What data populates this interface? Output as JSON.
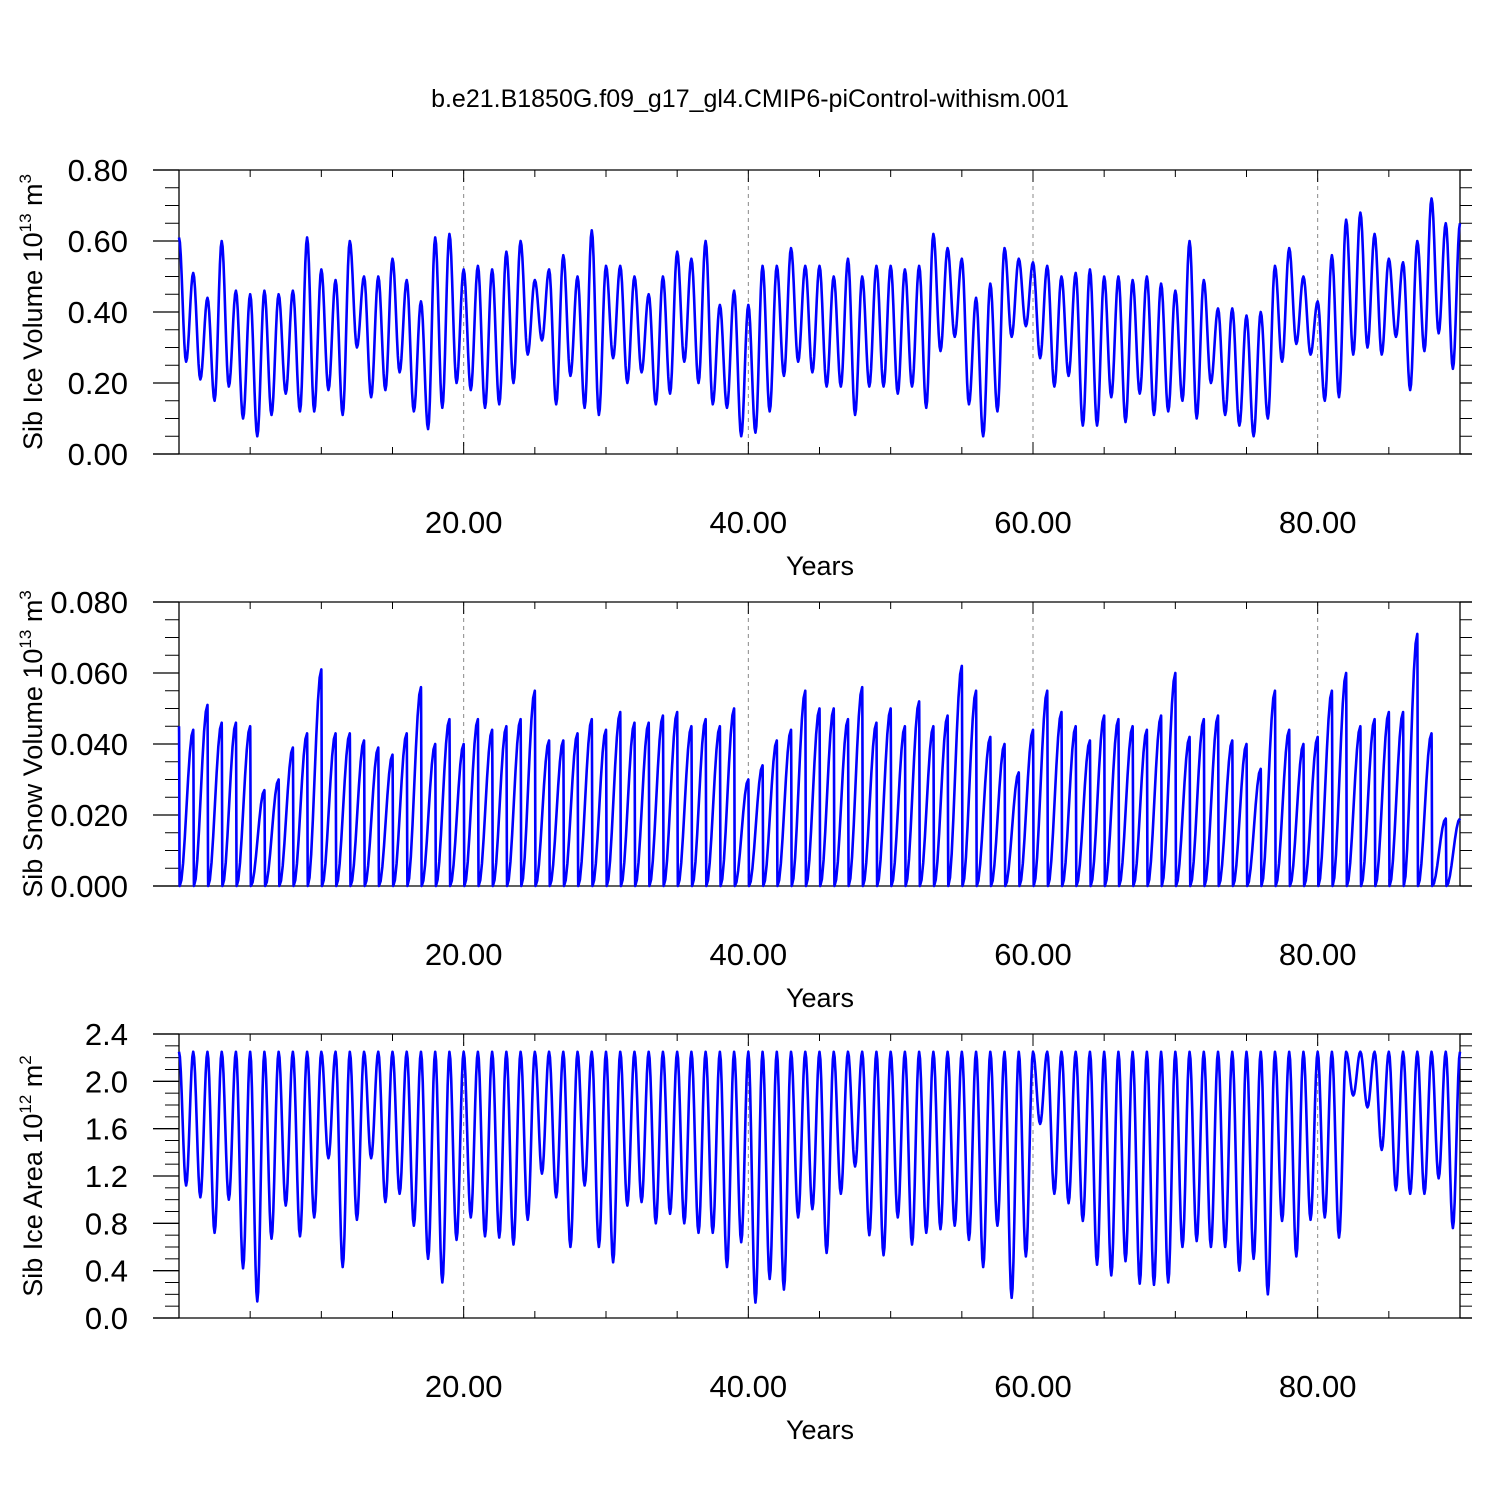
{
  "title": "b.e21.B1850G.f09_g17_gl4.CMIP6-piControl-withism.001",
  "colors": {
    "line": "#0000ff",
    "axis": "#000000",
    "grid": "#888888"
  },
  "chart_data": [
    {
      "type": "line",
      "ylabel_main": "Sib Ice Volume 10",
      "ylabel_exp": "13",
      "ylabel_unit": "m",
      "ylabel_unit_exp": "3",
      "xlabel": "Years",
      "xlim": [
        0,
        90
      ],
      "ylim": [
        0,
        0.8
      ],
      "yticks": [
        0,
        0.2,
        0.4,
        0.6,
        0.8
      ],
      "ytick_labels": [
        "0.00",
        "0.20",
        "0.40",
        "0.60",
        "0.80"
      ],
      "xticks": [
        20,
        40,
        60,
        80
      ],
      "xtick_labels": [
        "20.00",
        "40.00",
        "60.00",
        "80.00"
      ],
      "grid": "dashed vertical lines at major x ticks",
      "series": [
        {
          "maxima": [
            0.61,
            0.51,
            0.44,
            0.6,
            0.46,
            0.45,
            0.46,
            0.45,
            0.46,
            0.61,
            0.52,
            0.49,
            0.6,
            0.5,
            0.5,
            0.55,
            0.49,
            0.43,
            0.61,
            0.62,
            0.52,
            0.53,
            0.52,
            0.57,
            0.6,
            0.49,
            0.52,
            0.56,
            0.5,
            0.63,
            0.53,
            0.53,
            0.5,
            0.45,
            0.5,
            0.57,
            0.55,
            0.6,
            0.42,
            0.46,
            0.42,
            0.53,
            0.53,
            0.58,
            0.53,
            0.53,
            0.5,
            0.55,
            0.5,
            0.53,
            0.53,
            0.52,
            0.53,
            0.62,
            0.58,
            0.55,
            0.44,
            0.48,
            0.58,
            0.55,
            0.54,
            0.53,
            0.5,
            0.51,
            0.52,
            0.5,
            0.5,
            0.49,
            0.5,
            0.48,
            0.46,
            0.6,
            0.49,
            0.41,
            0.41,
            0.39,
            0.4,
            0.53,
            0.58,
            0.5,
            0.43,
            0.56,
            0.66,
            0.68,
            0.62,
            0.55,
            0.54,
            0.6,
            0.72,
            0.65
          ],
          "minima": [
            0.26,
            0.21,
            0.15,
            0.19,
            0.1,
            0.05,
            0.11,
            0.17,
            0.12,
            0.12,
            0.18,
            0.11,
            0.3,
            0.16,
            0.18,
            0.23,
            0.12,
            0.07,
            0.13,
            0.2,
            0.18,
            0.13,
            0.14,
            0.2,
            0.28,
            0.32,
            0.14,
            0.22,
            0.13,
            0.11,
            0.27,
            0.2,
            0.23,
            0.14,
            0.17,
            0.26,
            0.2,
            0.14,
            0.13,
            0.05,
            0.06,
            0.12,
            0.22,
            0.26,
            0.23,
            0.19,
            0.19,
            0.11,
            0.19,
            0.19,
            0.17,
            0.19,
            0.13,
            0.29,
            0.33,
            0.14,
            0.05,
            0.12,
            0.33,
            0.36,
            0.27,
            0.19,
            0.22,
            0.08,
            0.08,
            0.16,
            0.09,
            0.17,
            0.11,
            0.12,
            0.15,
            0.1,
            0.2,
            0.11,
            0.08,
            0.05,
            0.1,
            0.26,
            0.31,
            0.28,
            0.15,
            0.16,
            0.28,
            0.3,
            0.28,
            0.33,
            0.18,
            0.29,
            0.34,
            0.24
          ],
          "min_offset": 0.5
        }
      ]
    },
    {
      "type": "line",
      "ylabel_main": "Sib Snow Volume 10",
      "ylabel_exp": "13",
      "ylabel_unit": "m",
      "ylabel_unit_exp": "3",
      "xlabel": "Years",
      "xlim": [
        0,
        90
      ],
      "ylim": [
        0,
        0.08
      ],
      "yticks": [
        0,
        0.02,
        0.04,
        0.06,
        0.08
      ],
      "ytick_labels": [
        "0.000",
        "0.020",
        "0.040",
        "0.060",
        "0.080"
      ],
      "xticks": [
        20,
        40,
        60,
        80
      ],
      "xtick_labels": [
        "20.00",
        "40.00",
        "60.00",
        "80.00"
      ],
      "grid": "dashed vertical lines at major x ticks",
      "series": [
        {
          "maxima": [
            0.045,
            0.044,
            0.051,
            0.046,
            0.046,
            0.045,
            0.027,
            0.03,
            0.039,
            0.043,
            0.061,
            0.043,
            0.043,
            0.041,
            0.039,
            0.037,
            0.043,
            0.056,
            0.04,
            0.047,
            0.04,
            0.047,
            0.044,
            0.045,
            0.047,
            0.055,
            0.041,
            0.041,
            0.043,
            0.047,
            0.044,
            0.049,
            0.046,
            0.046,
            0.048,
            0.049,
            0.045,
            0.047,
            0.045,
            0.05,
            0.03,
            0.034,
            0.041,
            0.044,
            0.055,
            0.05,
            0.05,
            0.047,
            0.056,
            0.046,
            0.05,
            0.045,
            0.052,
            0.045,
            0.048,
            0.062,
            0.055,
            0.042,
            0.04,
            0.032,
            0.044,
            0.055,
            0.049,
            0.045,
            0.041,
            0.048,
            0.047,
            0.045,
            0.044,
            0.048,
            0.06,
            0.042,
            0.047,
            0.048,
            0.041,
            0.04,
            0.033,
            0.055,
            0.044,
            0.04,
            0.042,
            0.055,
            0.06,
            0.045,
            0.047,
            0.049,
            0.049,
            0.071,
            0.043,
            0.019
          ],
          "minima": [
            0,
            0,
            0,
            0,
            0,
            0,
            0,
            0,
            0,
            0,
            0,
            0,
            0,
            0,
            0,
            0,
            0,
            0,
            0,
            0,
            0,
            0,
            0,
            0,
            0,
            0,
            0,
            0,
            0,
            0,
            0,
            0,
            0,
            0,
            0,
            0,
            0,
            0,
            0,
            0,
            0,
            0,
            0,
            0,
            0,
            0,
            0,
            0,
            0,
            0,
            0,
            0,
            0,
            0,
            0,
            0,
            0,
            0,
            0,
            0,
            0,
            0,
            0,
            0,
            0,
            0,
            0,
            0,
            0,
            0,
            0,
            0,
            0,
            0,
            0,
            0,
            0,
            0,
            0,
            0,
            0,
            0,
            0,
            0,
            0,
            0,
            0,
            0,
            0,
            0
          ],
          "min_offset": 0.05
        }
      ]
    },
    {
      "type": "line",
      "ylabel_main": "Sib Ice Area 10",
      "ylabel_exp": "12",
      "ylabel_unit": "m",
      "ylabel_unit_exp": "2",
      "xlabel": "Years",
      "xlim": [
        0,
        90
      ],
      "ylim": [
        0,
        2.4
      ],
      "yticks": [
        0,
        0.4,
        0.8,
        1.2,
        1.6,
        2.0,
        2.4
      ],
      "ytick_labels": [
        "0.0",
        "0.4",
        "0.8",
        "1.2",
        "1.6",
        "2.0",
        "2.4"
      ],
      "xticks": [
        20,
        40,
        60,
        80
      ],
      "xtick_labels": [
        "20.00",
        "40.00",
        "60.00",
        "80.00"
      ],
      "grid": "dashed vertical lines at major x ticks",
      "series": [
        {
          "maxima": [
            2.25,
            2.25,
            2.25,
            2.25,
            2.25,
            2.25,
            2.25,
            2.25,
            2.25,
            2.25,
            2.25,
            2.25,
            2.25,
            2.25,
            2.25,
            2.25,
            2.25,
            2.25,
            2.25,
            2.25,
            2.25,
            2.25,
            2.25,
            2.25,
            2.25,
            2.25,
            2.25,
            2.25,
            2.25,
            2.25,
            2.25,
            2.25,
            2.25,
            2.25,
            2.25,
            2.25,
            2.25,
            2.25,
            2.25,
            2.25,
            2.25,
            2.25,
            2.25,
            2.25,
            2.25,
            2.25,
            2.25,
            2.25,
            2.25,
            2.25,
            2.25,
            2.25,
            2.25,
            2.25,
            2.25,
            2.25,
            2.25,
            2.25,
            2.25,
            2.25,
            2.25,
            2.25,
            2.25,
            2.25,
            2.25,
            2.25,
            2.25,
            2.25,
            2.25,
            2.25,
            2.25,
            2.25,
            2.25,
            2.25,
            2.25,
            2.25,
            2.25,
            2.25,
            2.25,
            2.25,
            2.25,
            2.25,
            2.25,
            2.25,
            2.25,
            2.25,
            2.25,
            2.25,
            2.25,
            2.25
          ],
          "minima": [
            1.12,
            1.02,
            0.72,
            1.0,
            0.42,
            0.14,
            0.67,
            0.95,
            0.69,
            0.85,
            1.35,
            0.43,
            0.83,
            1.35,
            0.98,
            1.05,
            0.78,
            0.5,
            0.3,
            0.66,
            0.85,
            0.69,
            0.68,
            0.62,
            0.83,
            1.22,
            1.02,
            0.6,
            1.12,
            0.6,
            0.47,
            0.95,
            0.98,
            0.8,
            0.88,
            0.8,
            0.72,
            0.72,
            0.43,
            0.64,
            0.13,
            0.33,
            0.24,
            0.85,
            0.92,
            0.55,
            1.05,
            1.28,
            0.7,
            0.53,
            0.85,
            0.62,
            0.72,
            0.75,
            0.78,
            0.66,
            0.43,
            0.78,
            0.17,
            0.52,
            1.64,
            1.05,
            0.97,
            0.82,
            0.45,
            0.36,
            0.48,
            0.29,
            0.28,
            0.3,
            0.6,
            0.65,
            0.6,
            0.6,
            0.4,
            0.5,
            0.2,
            0.82,
            0.52,
            0.83,
            0.85,
            0.68,
            1.88,
            1.78,
            1.42,
            1.08,
            1.05,
            1.05,
            1.18,
            0.76
          ],
          "min_offset": 0.5
        }
      ]
    }
  ]
}
